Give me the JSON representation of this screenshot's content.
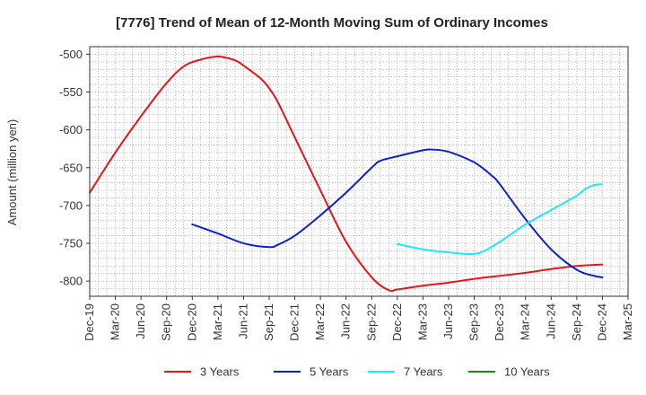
{
  "chart_data": {
    "type": "line",
    "title": "[7776]  Trend of Mean of 12-Month Moving Sum of Ordinary Incomes",
    "xlabel": "",
    "ylabel": "Amount (million yen)",
    "ylim": [
      -820,
      -490
    ],
    "yticks": [
      -500,
      -550,
      -600,
      -650,
      -700,
      -750,
      -800
    ],
    "xticks": [
      "Dec-19",
      "Mar-20",
      "Jun-20",
      "Sep-20",
      "Dec-20",
      "Mar-21",
      "Jun-21",
      "Sep-21",
      "Dec-21",
      "Mar-22",
      "Jun-22",
      "Sep-22",
      "Dec-22",
      "Mar-23",
      "Jun-23",
      "Sep-23",
      "Dec-23",
      "Mar-24",
      "Jun-24",
      "Sep-24",
      "Dec-24",
      "Mar-25"
    ],
    "grid": true,
    "legend_position": "bottom",
    "series": [
      {
        "name": "3 Years",
        "color": "#e8141b",
        "points": [
          [
            "Dec-19",
            -683
          ],
          [
            "Mar-20",
            -630
          ],
          [
            "Jun-20",
            -582
          ],
          [
            "Sep-20",
            -538
          ],
          [
            "Nov-20",
            -516
          ],
          [
            "Jan-21",
            -507
          ],
          [
            "Mar-21",
            -503
          ],
          [
            "May-21",
            -508
          ],
          [
            "Jun-21",
            -515
          ],
          [
            "Aug-21",
            -532
          ],
          [
            "Sep-21",
            -545
          ],
          [
            "Oct-21",
            -563
          ],
          [
            "Dec-21",
            -610
          ],
          [
            "Mar-22",
            -680
          ],
          [
            "Jun-22",
            -748
          ],
          [
            "Sep-22",
            -795
          ],
          [
            "Nov-22",
            -812
          ],
          [
            "Dec-22",
            -811
          ],
          [
            "Mar-23",
            -806
          ],
          [
            "Jun-23",
            -802
          ],
          [
            "Sep-23",
            -797
          ],
          [
            "Dec-23",
            -793
          ],
          [
            "Mar-24",
            -789
          ],
          [
            "Jun-24",
            -784
          ],
          [
            "Sep-24",
            -780
          ],
          [
            "Dec-24",
            -778
          ]
        ]
      },
      {
        "name": "5 Years",
        "color": "#1020c8",
        "points": [
          [
            "Dec-20",
            -725
          ],
          [
            "Mar-21",
            -737
          ],
          [
            "Jun-21",
            -750
          ],
          [
            "Sep-21",
            -755
          ],
          [
            "Oct-21",
            -752
          ],
          [
            "Dec-21",
            -740
          ],
          [
            "Mar-22",
            -713
          ],
          [
            "Jun-22",
            -683
          ],
          [
            "Sep-22",
            -650
          ],
          [
            "Oct-22",
            -641
          ],
          [
            "Dec-22",
            -635
          ],
          [
            "Mar-23",
            -627
          ],
          [
            "Apr-23",
            -626
          ],
          [
            "Jun-23",
            -629
          ],
          [
            "Sep-23",
            -643
          ],
          [
            "Nov-23",
            -660
          ],
          [
            "Dec-23",
            -672
          ],
          [
            "Mar-24",
            -718
          ],
          [
            "Jun-24",
            -758
          ],
          [
            "Sep-24",
            -785
          ],
          [
            "Nov-24",
            -793
          ],
          [
            "Dec-24",
            -795
          ]
        ]
      },
      {
        "name": "7 Years",
        "color": "#22e8f0",
        "points": [
          [
            "Dec-22",
            -751
          ],
          [
            "Mar-23",
            -758
          ],
          [
            "Jun-23",
            -762
          ],
          [
            "Aug-23",
            -764
          ],
          [
            "Sep-23",
            -764
          ],
          [
            "Oct-23",
            -761
          ],
          [
            "Dec-23",
            -748
          ],
          [
            "Mar-24",
            -725
          ],
          [
            "Jun-24",
            -706
          ],
          [
            "Sep-24",
            -687
          ],
          [
            "Oct-24",
            -678
          ],
          [
            "Nov-24",
            -673
          ],
          [
            "Dec-24",
            -672
          ]
        ]
      },
      {
        "name": "10 Years",
        "color": "#1a8a1a",
        "points": []
      }
    ]
  }
}
